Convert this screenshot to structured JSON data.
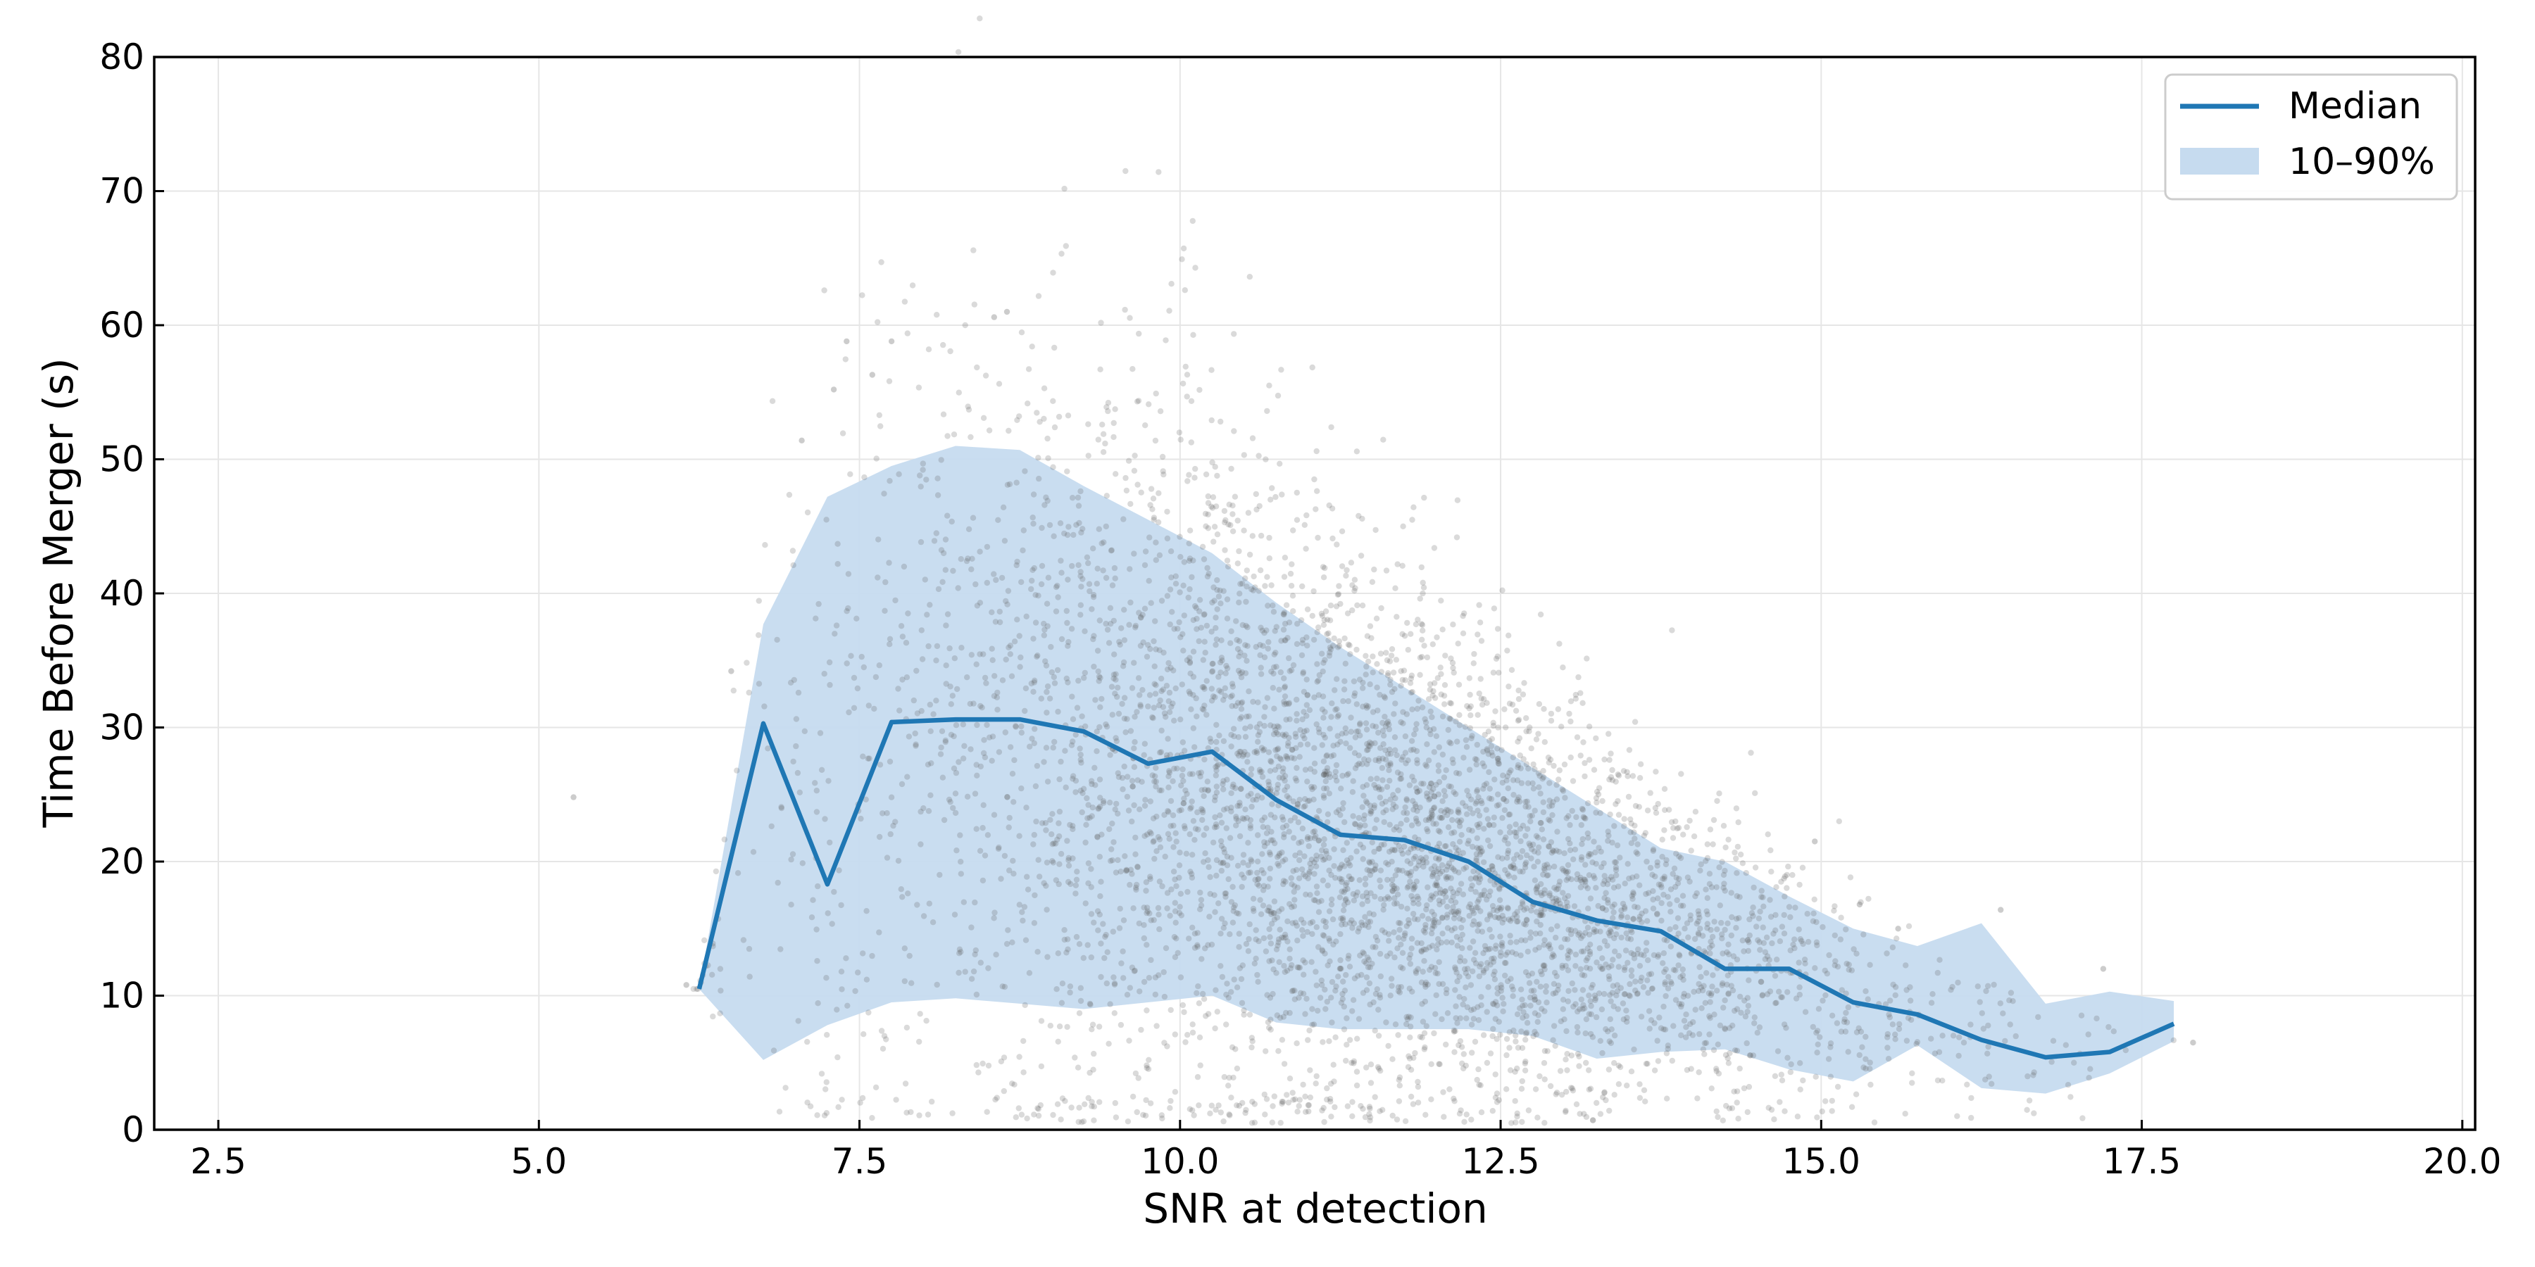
{
  "chart_data": {
    "type": "scatter",
    "xlabel": "SNR at detection",
    "ylabel": "Time Before Merger (s)",
    "xlim": [
      2.0,
      20.1
    ],
    "ylim": [
      0,
      80
    ],
    "x_ticks": [
      "2.5",
      "5.0",
      "7.5",
      "10.0",
      "12.5",
      "15.0",
      "17.5",
      "20.0"
    ],
    "y_ticks": [
      "0",
      "10",
      "20",
      "30",
      "40",
      "50",
      "60",
      "70",
      "80"
    ],
    "grid": true,
    "legend_position": "top-right",
    "colors": {
      "median": "#1f77b4",
      "band": "#c6dbef",
      "points": "#555555"
    },
    "series": [
      {
        "name": "Median",
        "kind": "line",
        "x": [
          6.25,
          6.75,
          7.25,
          7.75,
          8.25,
          8.75,
          9.25,
          9.75,
          10.25,
          10.75,
          11.25,
          11.75,
          12.25,
          12.75,
          13.25,
          13.75,
          14.25,
          14.75,
          15.25,
          15.75,
          16.25,
          16.75,
          17.25,
          17.75
        ],
        "y": [
          10.5,
          30.3,
          18.3,
          30.4,
          30.6,
          30.6,
          29.7,
          27.3,
          28.2,
          24.6,
          22.0,
          21.6,
          20.0,
          17.0,
          15.6,
          14.8,
          12.0,
          12.0,
          9.5,
          8.6,
          6.7,
          5.4,
          5.8,
          7.9
        ]
      },
      {
        "name": "10–90%",
        "kind": "band",
        "x": [
          6.25,
          6.75,
          7.25,
          7.75,
          8.25,
          8.75,
          9.25,
          9.75,
          10.25,
          10.75,
          11.25,
          11.75,
          12.25,
          12.75,
          13.25,
          13.75,
          14.25,
          14.75,
          15.25,
          15.75,
          16.25,
          16.75,
          17.25,
          17.75
        ],
        "low": [
          10.5,
          5.2,
          7.8,
          9.5,
          9.8,
          9.4,
          9.0,
          9.5,
          10.0,
          8.0,
          7.5,
          7.5,
          7.5,
          7.0,
          5.3,
          5.8,
          6.0,
          4.5,
          3.6,
          6.3,
          3.1,
          2.7,
          4.2,
          6.6
        ],
        "high": [
          10.5,
          37.7,
          47.2,
          49.5,
          51.0,
          50.7,
          48.0,
          45.5,
          43.0,
          39.3,
          36.0,
          33.0,
          30.0,
          27.0,
          24.0,
          21.0,
          20.0,
          17.4,
          15.0,
          13.7,
          15.4,
          9.4,
          10.3,
          9.6
        ]
      }
    ],
    "scatter": {
      "count": 5000,
      "description_note": "",
      "outliers_x": [
        5.27,
        6.15,
        6.5,
        7.05,
        7.3,
        7.4,
        7.6,
        7.75,
        8.65,
        8.55,
        17.9,
        17.2,
        16.4,
        15.6,
        15.3,
        14.95
      ],
      "outliers_y": [
        24.8,
        10.8,
        34.2,
        51.4,
        55.2,
        58.8,
        56.3,
        58.8,
        61.0,
        60.6,
        6.5,
        12.0,
        16.4,
        15.0,
        16.8,
        21.5
      ]
    }
  }
}
